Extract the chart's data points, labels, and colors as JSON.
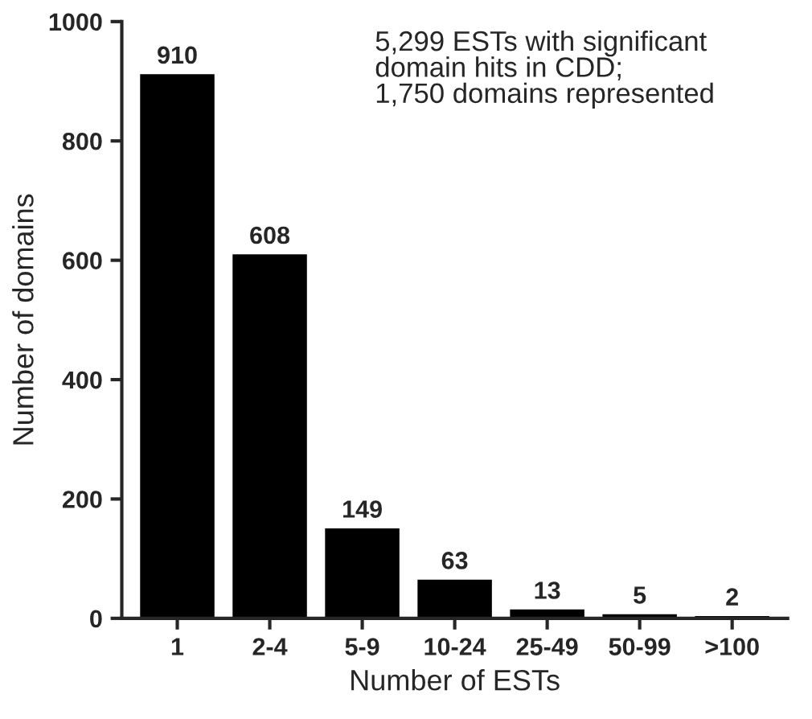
{
  "chart_data": {
    "type": "bar",
    "xlabel": "Number of ESTs",
    "ylabel": "Number of domains",
    "categories": [
      "1",
      "2-4",
      "5-9",
      "10-24",
      "25-49",
      "50-99",
      ">100"
    ],
    "values": [
      910,
      608,
      149,
      63,
      13,
      5,
      2
    ],
    "color": "#000000",
    "data_labels": true,
    "ylim": [
      0,
      1000
    ],
    "yticks": [
      0,
      200,
      400,
      600,
      800,
      1000
    ],
    "grid": false,
    "annotations": [
      "5,299 ESTs with significant\ndomain hits in CDD;\n1,750 domains represented"
    ]
  }
}
